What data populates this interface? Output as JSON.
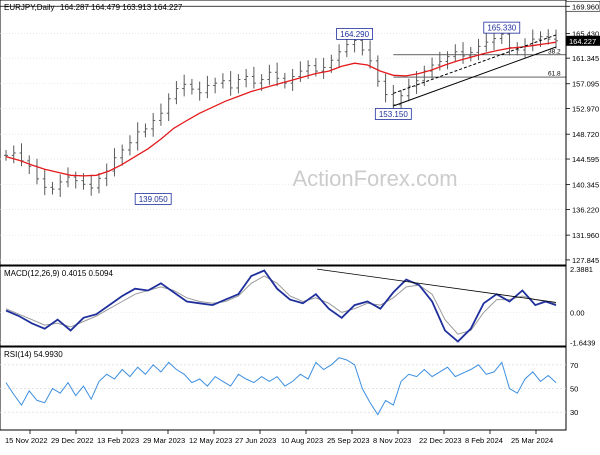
{
  "colors": {
    "background": "#ffffff",
    "frame": "#000000",
    "grid": "#d9d9d9",
    "bars": "#5a5a5a",
    "ma_line": "#e41a1c",
    "macd_line": "#1f2f9c",
    "signal_line": "#9a9a9a",
    "rsi_line": "#3d8fe0",
    "label_border": "#1f2f9c",
    "label_text": "#1f2f9c",
    "current_price_bg": "#000000",
    "current_price_text": "#ffffff",
    "watermark": "#cccccc"
  },
  "watermark": "ActionForex.com",
  "chart_data": [
    {
      "type": "candlestick",
      "title": "EURJPY,Daily",
      "ohlc_header": "164.287 164.479 163.913 164.227",
      "current_price": "164.227",
      "price_range": [
        127.0,
        171.0
      ],
      "y_ticks": [
        "169.960",
        "165.430",
        "161.345",
        "157.095",
        "152.970",
        "148.720",
        "144.595",
        "140.345",
        "136.220",
        "131.960",
        "127.845"
      ],
      "x_ticks": [
        "15 Nov 2022",
        "29 Dec 2022",
        "13 Feb 2023",
        "29 Mar 2023",
        "12 May 2023",
        "27 Jun 2023",
        "10 Aug 2023",
        "25 Sep 2023",
        "8 Nov 2023",
        "22 Dec 2023",
        "8 Feb 2024",
        "25 Mar 2024"
      ],
      "closes": [
        [
          0,
          145.2
        ],
        [
          6,
          145.6
        ],
        [
          12,
          144.3
        ],
        [
          18,
          143.4
        ],
        [
          24,
          141.3
        ],
        [
          30,
          139.9
        ],
        [
          36,
          139.6
        ],
        [
          42,
          140.8
        ],
        [
          48,
          141.6
        ],
        [
          54,
          141.0
        ],
        [
          60,
          140.4
        ],
        [
          66,
          139.8
        ],
        [
          72,
          141.4
        ],
        [
          78,
          142.6
        ],
        [
          84,
          144.8
        ],
        [
          90,
          146.1
        ],
        [
          96,
          147.3
        ],
        [
          102,
          149.1
        ],
        [
          108,
          149.6
        ],
        [
          114,
          151.0
        ],
        [
          120,
          152.2
        ],
        [
          126,
          154.6
        ],
        [
          132,
          156.3
        ],
        [
          138,
          157.0
        ],
        [
          144,
          156.2
        ],
        [
          150,
          155.6
        ],
        [
          156,
          156.8
        ],
        [
          162,
          157.2
        ],
        [
          168,
          157.6
        ],
        [
          174,
          156.4
        ],
        [
          180,
          157.8
        ],
        [
          186,
          158.3
        ],
        [
          192,
          157.2
        ],
        [
          198,
          157.8
        ],
        [
          204,
          159.0
        ],
        [
          210,
          158.0
        ],
        [
          216,
          157.2
        ],
        [
          222,
          158.3
        ],
        [
          228,
          159.2
        ],
        [
          234,
          160.1
        ],
        [
          240,
          159.2
        ],
        [
          246,
          159.8
        ],
        [
          252,
          161.0
        ],
        [
          258,
          162.4
        ],
        [
          264,
          163.6
        ],
        [
          270,
          164.29
        ],
        [
          276,
          162.7
        ],
        [
          282,
          160.9
        ],
        [
          288,
          157.5
        ],
        [
          294,
          155.3
        ],
        [
          300,
          153.6
        ],
        [
          306,
          155.1
        ],
        [
          312,
          156.7
        ],
        [
          318,
          157.6
        ],
        [
          324,
          159.2
        ],
        [
          330,
          160.2
        ],
        [
          336,
          160.8
        ],
        [
          342,
          161.6
        ],
        [
          348,
          162.4
        ],
        [
          354,
          161.7
        ],
        [
          360,
          162.3
        ],
        [
          366,
          163.3
        ],
        [
          372,
          164.0
        ],
        [
          378,
          164.6
        ],
        [
          384,
          165.33
        ],
        [
          390,
          163.1
        ],
        [
          396,
          162.7
        ],
        [
          402,
          163.4
        ],
        [
          408,
          164.5
        ],
        [
          414,
          164.9
        ],
        [
          420,
          164.5
        ],
        [
          426,
          164.227
        ]
      ],
      "moving_average": [
        [
          0,
          145.0
        ],
        [
          10,
          144.4
        ],
        [
          20,
          143.6
        ],
        [
          30,
          142.9
        ],
        [
          40,
          142.4
        ],
        [
          50,
          141.9
        ],
        [
          60,
          141.8
        ],
        [
          70,
          141.9
        ],
        [
          80,
          142.6
        ],
        [
          90,
          143.7
        ],
        [
          100,
          145.0
        ],
        [
          110,
          146.3
        ],
        [
          120,
          147.9
        ],
        [
          130,
          149.7
        ],
        [
          140,
          151.0
        ],
        [
          150,
          152.2
        ],
        [
          160,
          153.2
        ],
        [
          170,
          154.2
        ],
        [
          180,
          155.0
        ],
        [
          190,
          155.8
        ],
        [
          200,
          156.4
        ],
        [
          210,
          157.0
        ],
        [
          220,
          157.6
        ],
        [
          230,
          158.2
        ],
        [
          240,
          158.8
        ],
        [
          250,
          159.2
        ],
        [
          260,
          160.0
        ],
        [
          270,
          160.5
        ],
        [
          280,
          160.2
        ],
        [
          290,
          159.2
        ],
        [
          300,
          158.5
        ],
        [
          310,
          158.4
        ],
        [
          320,
          158.8
        ],
        [
          330,
          159.4
        ],
        [
          340,
          160.2
        ],
        [
          350,
          160.9
        ],
        [
          360,
          161.5
        ],
        [
          370,
          162.1
        ],
        [
          380,
          162.6
        ],
        [
          390,
          163.0
        ],
        [
          400,
          163.2
        ],
        [
          410,
          163.5
        ],
        [
          420,
          163.8
        ],
        [
          426,
          164.0
        ]
      ],
      "labels": [
        {
          "text": "164.290",
          "x": 270,
          "y": 164.29
        },
        {
          "text": "165.330",
          "x": 384,
          "y": 165.33
        },
        {
          "text": "153.150",
          "x": 300,
          "y": 153.15
        },
        {
          "text": "139.050",
          "x": 114,
          "y": 139.05
        }
      ],
      "fib_levels": [
        {
          "text": "38.2",
          "y": 161.9
        },
        {
          "text": "61.8",
          "y": 158.2
        }
      ],
      "horizontal_line": 169.96,
      "trendline": [
        [
          300,
          153.4
        ],
        [
          426,
          163.2
        ]
      ],
      "channel_line": [
        [
          300,
          155.5
        ],
        [
          426,
          165.2
        ]
      ]
    },
    {
      "type": "line",
      "title": "MACD(12,26,9) 0.4015 0.5094",
      "y_range": [
        -1.85,
        2.55
      ],
      "y_ticks": [
        "2.3881",
        "0.00",
        "-1.6439"
      ],
      "series": [
        {
          "key": "macd",
          "values": [
            [
              0,
              0.1
            ],
            [
              10,
              -0.2
            ],
            [
              20,
              -0.6
            ],
            [
              30,
              -0.9
            ],
            [
              40,
              -0.4
            ],
            [
              50,
              -1.0
            ],
            [
              60,
              -0.3
            ],
            [
              70,
              -0.1
            ],
            [
              80,
              0.4
            ],
            [
              90,
              0.9
            ],
            [
              100,
              1.3
            ],
            [
              110,
              1.2
            ],
            [
              120,
              1.6
            ],
            [
              130,
              1.1
            ],
            [
              140,
              0.6
            ],
            [
              150,
              0.5
            ],
            [
              160,
              0.4
            ],
            [
              170,
              0.7
            ],
            [
              180,
              1.0
            ],
            [
              190,
              2.0
            ],
            [
              200,
              2.3
            ],
            [
              210,
              1.3
            ],
            [
              220,
              0.7
            ],
            [
              230,
              0.5
            ],
            [
              240,
              1.0
            ],
            [
              250,
              0.2
            ],
            [
              260,
              -0.3
            ],
            [
              270,
              0.4
            ],
            [
              280,
              0.6
            ],
            [
              290,
              0.2
            ],
            [
              300,
              1.1
            ],
            [
              310,
              1.8
            ],
            [
              320,
              1.5
            ],
            [
              330,
              0.6
            ],
            [
              340,
              -1.0
            ],
            [
              350,
              -1.6
            ],
            [
              360,
              -0.9
            ],
            [
              370,
              0.5
            ],
            [
              380,
              1.0
            ],
            [
              390,
              0.6
            ],
            [
              400,
              1.2
            ],
            [
              410,
              0.4
            ],
            [
              418,
              0.6
            ],
            [
              426,
              0.4015
            ]
          ]
        },
        {
          "key": "signal",
          "values": [
            [
              0,
              0.2
            ],
            [
              10,
              -0.1
            ],
            [
              20,
              -0.4
            ],
            [
              30,
              -0.7
            ],
            [
              40,
              -0.6
            ],
            [
              50,
              -0.8
            ],
            [
              60,
              -0.5
            ],
            [
              70,
              -0.2
            ],
            [
              80,
              0.2
            ],
            [
              90,
              0.6
            ],
            [
              100,
              1.0
            ],
            [
              110,
              1.2
            ],
            [
              120,
              1.4
            ],
            [
              130,
              1.2
            ],
            [
              140,
              0.8
            ],
            [
              150,
              0.6
            ],
            [
              160,
              0.5
            ],
            [
              170,
              0.6
            ],
            [
              180,
              0.9
            ],
            [
              190,
              1.6
            ],
            [
              200,
              2.0
            ],
            [
              210,
              1.6
            ],
            [
              220,
              0.9
            ],
            [
              230,
              0.6
            ],
            [
              240,
              0.8
            ],
            [
              250,
              0.5
            ],
            [
              260,
              0.0
            ],
            [
              270,
              0.2
            ],
            [
              280,
              0.5
            ],
            [
              290,
              0.4
            ],
            [
              300,
              0.8
            ],
            [
              310,
              1.4
            ],
            [
              320,
              1.5
            ],
            [
              330,
              1.0
            ],
            [
              340,
              -0.4
            ],
            [
              350,
              -1.2
            ],
            [
              360,
              -1.0
            ],
            [
              370,
              0.0
            ],
            [
              380,
              0.7
            ],
            [
              390,
              0.7
            ],
            [
              400,
              0.9
            ],
            [
              410,
              0.7
            ],
            [
              418,
              0.6
            ],
            [
              426,
              0.5094
            ]
          ]
        }
      ],
      "trendline": [
        [
          241,
          2.38
        ],
        [
          426,
          0.55
        ]
      ]
    },
    {
      "type": "line",
      "title": "RSI(14) 54.9930",
      "y_range": [
        15,
        85
      ],
      "y_ticks": [
        "70",
        "50",
        "30"
      ],
      "series": [
        {
          "key": "rsi",
          "values": [
            [
              0,
              55
            ],
            [
              6,
              45
            ],
            [
              12,
              36
            ],
            [
              18,
              48
            ],
            [
              24,
              40
            ],
            [
              30,
              38
            ],
            [
              36,
              50
            ],
            [
              42,
              46
            ],
            [
              48,
              55
            ],
            [
              54,
              44
            ],
            [
              60,
              52
            ],
            [
              66,
              41
            ],
            [
              72,
              56
            ],
            [
              78,
              62
            ],
            [
              84,
              58
            ],
            [
              90,
              66
            ],
            [
              96,
              60
            ],
            [
              102,
              68
            ],
            [
              108,
              62
            ],
            [
              114,
              70
            ],
            [
              120,
              64
            ],
            [
              126,
              72
            ],
            [
              132,
              66
            ],
            [
              138,
              62
            ],
            [
              144,
              55
            ],
            [
              150,
              58
            ],
            [
              156,
              52
            ],
            [
              162,
              60
            ],
            [
              168,
              56
            ],
            [
              174,
              52
            ],
            [
              180,
              62
            ],
            [
              186,
              58
            ],
            [
              192,
              55
            ],
            [
              198,
              60
            ],
            [
              204,
              56
            ],
            [
              210,
              60
            ],
            [
              216,
              52
            ],
            [
              222,
              56
            ],
            [
              228,
              62
            ],
            [
              234,
              58
            ],
            [
              240,
              72
            ],
            [
              246,
              66
            ],
            [
              252,
              70
            ],
            [
              258,
              76
            ],
            [
              264,
              74
            ],
            [
              270,
              70
            ],
            [
              276,
              50
            ],
            [
              282,
              38
            ],
            [
              288,
              28
            ],
            [
              294,
              40
            ],
            [
              300,
              36
            ],
            [
              306,
              56
            ],
            [
              312,
              62
            ],
            [
              318,
              60
            ],
            [
              324,
              66
            ],
            [
              330,
              60
            ],
            [
              336,
              64
            ],
            [
              342,
              68
            ],
            [
              348,
              60
            ],
            [
              354,
              63
            ],
            [
              360,
              66
            ],
            [
              366,
              70
            ],
            [
              372,
              62
            ],
            [
              378,
              64
            ],
            [
              384,
              72
            ],
            [
              390,
              50
            ],
            [
              396,
              46
            ],
            [
              402,
              58
            ],
            [
              408,
              64
            ],
            [
              414,
              56
            ],
            [
              420,
              61
            ],
            [
              426,
              54.993
            ]
          ]
        }
      ]
    }
  ]
}
